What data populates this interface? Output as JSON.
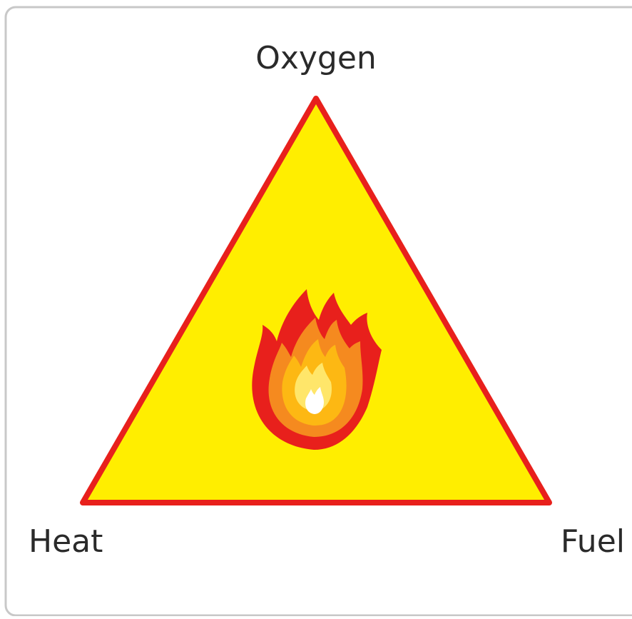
{
  "nodes": [
    {
      "label": "Oxygen"
    },
    {
      "label": "Heat"
    },
    {
      "label": "Fuel"
    }
  ]
}
